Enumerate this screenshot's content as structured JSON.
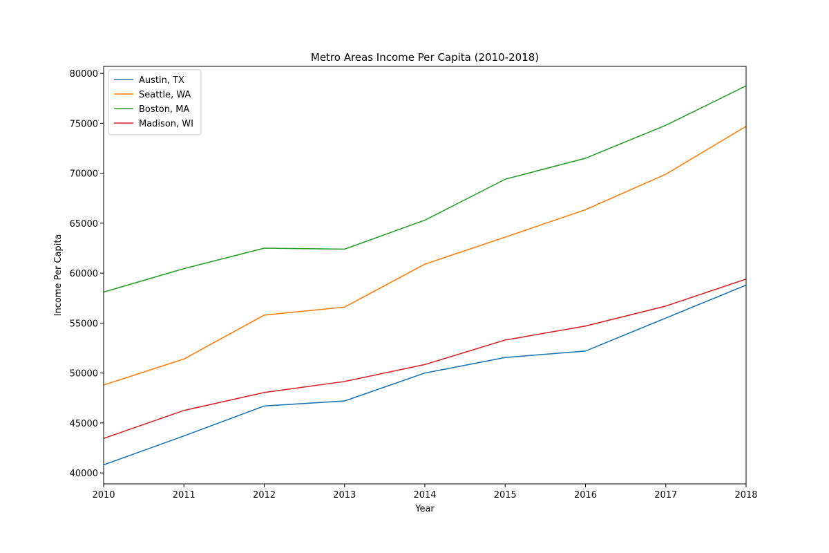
{
  "chart_data": {
    "type": "line",
    "title": "Metro Areas Income Per Capita (2010-2018)",
    "xlabel": "Year",
    "ylabel": "Income Per Capita",
    "x": [
      2010,
      2011,
      2012,
      2013,
      2014,
      2015,
      2016,
      2017,
      2018
    ],
    "xlim": [
      2010,
      2018
    ],
    "ylim": [
      38900,
      80700
    ],
    "yticks": [
      40000,
      45000,
      50000,
      55000,
      60000,
      65000,
      70000,
      75000,
      80000
    ],
    "grid": false,
    "legend": "top-left",
    "series": [
      {
        "name": "Austin, TX",
        "color": "#1f77b4",
        "values": [
          40800,
          43700,
          46700,
          47200,
          50000,
          51550,
          52200,
          55500,
          58800
        ]
      },
      {
        "name": "Seattle, WA",
        "color": "#ff7f0e",
        "values": [
          48800,
          51400,
          55800,
          56600,
          60900,
          63600,
          66350,
          69900,
          74700
        ]
      },
      {
        "name": "Boston, MA",
        "color": "#2ca02c",
        "values": [
          58100,
          60450,
          62500,
          62400,
          65300,
          69400,
          71500,
          74800,
          78750
        ]
      },
      {
        "name": "Madison, WI",
        "color": "#d62728",
        "values": [
          43450,
          46250,
          48050,
          49150,
          50850,
          53300,
          54700,
          56700,
          59400
        ]
      }
    ]
  }
}
